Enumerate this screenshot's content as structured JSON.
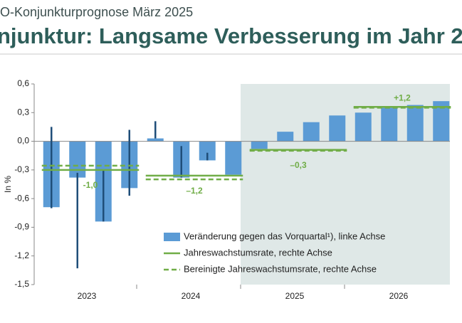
{
  "header": {
    "subtitle": "O-Konjunkturprognose März 2025",
    "title": "njunktur: Langsame Verbesserung im Jahr 2"
  },
  "chart_data": {
    "type": "bar",
    "ylabel": "In %",
    "groups": [
      "2023",
      "2024",
      "2025",
      "2026"
    ],
    "shade_from": "2025",
    "ylim": [
      -1.5,
      0.6
    ],
    "yticks": [
      {
        "value": 0.6,
        "label": "0,6"
      },
      {
        "value": 0.3,
        "label": "0,3"
      },
      {
        "value": 0,
        "label": "0,0"
      },
      {
        "value": -0.3,
        "label": "-0,3"
      },
      {
        "value": -0.6,
        "label": "-0,6"
      },
      {
        "value": -0.9,
        "label": "-0,9"
      },
      {
        "value": -1.2,
        "label": "-1,2"
      },
      {
        "value": -1.5,
        "label": "-1,5"
      }
    ],
    "y2lim": [
      -5,
      2
    ],
    "series": [
      {
        "name": "Veränderung gegen das Vorquartal¹), linke Achse",
        "color": "#5b9bd5",
        "values": [
          -0.69,
          -0.38,
          -0.84,
          -0.49,
          0.03,
          -0.38,
          -0.2,
          -0.35,
          -0.08,
          0.1,
          0.2,
          0.27,
          0.3,
          0.35,
          0.38,
          0.42
        ]
      },
      {
        "name": "Jahreswachstumsrate, rechte Achse",
        "color": "#70ad47",
        "axis": "y2",
        "dash": false,
        "values": [
          -1.0,
          -1.2,
          -0.3,
          1.2
        ],
        "value_labels": [
          "-1,0",
          "–1,2",
          "–0,3",
          "+1,2"
        ]
      },
      {
        "name": "Bereinigte Jahreswachstumsrate, rechte Achse",
        "color": "#70ad47",
        "axis": "y2",
        "dash": true,
        "values": [
          -0.85,
          -1.33,
          -0.33,
          1.17
        ]
      }
    ],
    "ranges_color": "#1f4e79",
    "ranges": [
      [
        0.15,
        -0.7
      ],
      [
        -0.33,
        -1.33
      ],
      [
        -0.3,
        -0.84
      ],
      [
        0.12,
        -0.57
      ],
      [
        0.21,
        0.03
      ],
      [
        -0.05,
        -0.38
      ],
      [
        -0.12,
        -0.2
      ],
      null,
      null,
      null,
      null,
      null,
      null,
      null,
      null,
      null
    ]
  }
}
